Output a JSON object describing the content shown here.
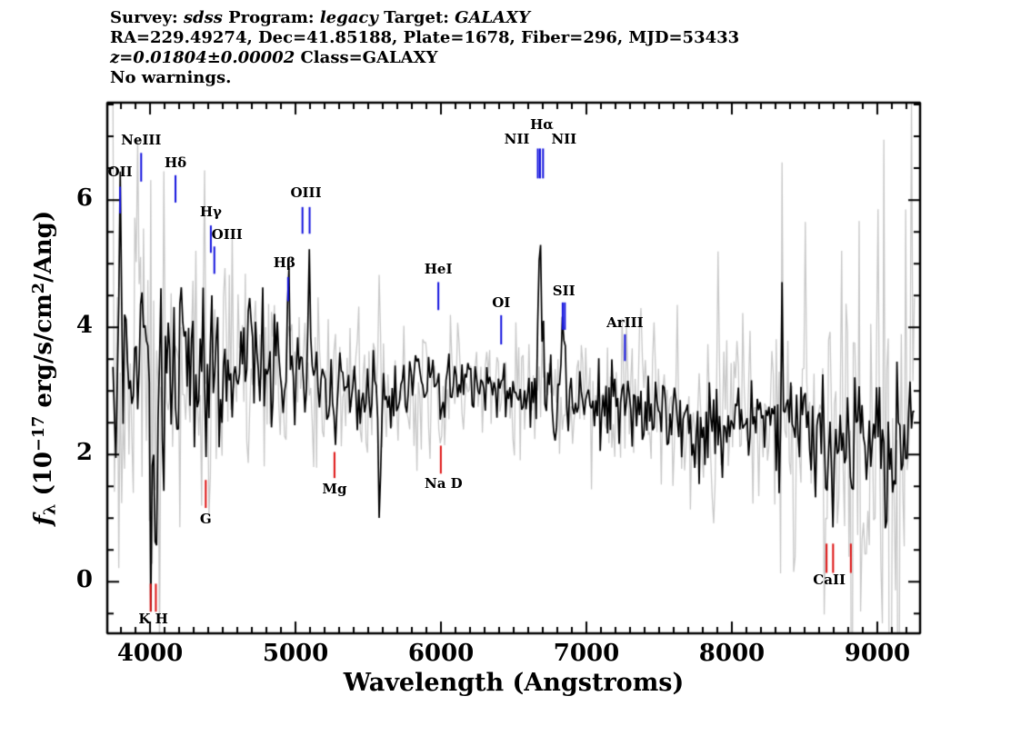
{
  "header": {
    "line1": {
      "survey_key": "Survey: ",
      "survey_val": "sdss",
      "program_key": " Program: ",
      "program_val": "legacy",
      "target_key": " Target: ",
      "target_val": "GALAXY"
    },
    "line2": "RA=229.49274, Dec=41.85188, Plate=1678, Fiber=296, MJD=53433",
    "line3": {
      "z_val": "z=0.01804±0.00002",
      "class_val": " Class=GALAXY"
    },
    "line4": "No warnings."
  },
  "chart_data": {
    "type": "line",
    "title": "",
    "xlabel": "Wavelength (Angstroms)",
    "ylabel_text": "fλ (10^-17 erg/s/cm^2/Ang)",
    "ylabel_parts": [
      "f",
      "λ",
      " (10",
      "−17",
      " erg/s/cm",
      "2",
      "/Ang)"
    ],
    "xlim": [
      3706,
      9294
    ],
    "ylim": [
      -0.81,
      7.53
    ],
    "xticks": [
      4000,
      5000,
      6000,
      7000,
      8000,
      9000
    ],
    "yticks": [
      0,
      2,
      4,
      6
    ],
    "x_minor_step": 100,
    "y_minor_step": 0.5,
    "grid": false,
    "legend": "none",
    "colors": {
      "flux": "#000000",
      "error": "#c8c8c8",
      "emission_tick": "#1010dd",
      "absorption_tick": "#dd1010",
      "frame": "#000000"
    },
    "series": [
      {
        "name": "flux",
        "style": "noisy-line",
        "color": "#000000"
      },
      {
        "name": "error",
        "style": "noisy-line",
        "color": "#c8c8c8"
      }
    ],
    "continuum_points": [
      [
        3745,
        3.2
      ],
      [
        3950,
        3.45
      ],
      [
        4150,
        3.3
      ],
      [
        4400,
        3.35
      ],
      [
        4700,
        3.35
      ],
      [
        5000,
        3.2
      ],
      [
        5400,
        3.05
      ],
      [
        5800,
        3.0
      ],
      [
        6200,
        3.05
      ],
      [
        6700,
        3.0
      ],
      [
        7000,
        2.85
      ],
      [
        7400,
        2.7
      ],
      [
        7800,
        2.6
      ],
      [
        8200,
        2.55
      ],
      [
        8600,
        2.4
      ],
      [
        9000,
        2.25
      ],
      [
        9255,
        2.35
      ]
    ],
    "flux_noise_sigma": [
      [
        3745,
        0.85
      ],
      [
        4100,
        0.8
      ],
      [
        4400,
        0.6
      ],
      [
        4700,
        0.45
      ],
      [
        5000,
        0.35
      ],
      [
        5500,
        0.3
      ],
      [
        6000,
        0.28
      ],
      [
        6500,
        0.28
      ],
      [
        7000,
        0.3
      ],
      [
        7500,
        0.35
      ],
      [
        8000,
        0.4
      ],
      [
        8500,
        0.45
      ],
      [
        9000,
        0.52
      ],
      [
        9255,
        0.55
      ]
    ],
    "error_sigma": [
      [
        3745,
        1.75
      ],
      [
        4100,
        1.6
      ],
      [
        4400,
        1.15
      ],
      [
        4700,
        0.9
      ],
      [
        5000,
        0.7
      ],
      [
        5500,
        0.6
      ],
      [
        6000,
        0.55
      ],
      [
        6500,
        0.55
      ],
      [
        7000,
        0.6
      ],
      [
        7500,
        0.68
      ],
      [
        8000,
        0.8
      ],
      [
        8500,
        0.95
      ],
      [
        9000,
        1.3
      ],
      [
        9255,
        1.5
      ]
    ],
    "sky_residuals": [
      [
        5577,
        6.0,
        4
      ],
      [
        6300,
        1.2,
        4
      ],
      [
        7245,
        1.0,
        4
      ],
      [
        7620,
        1.3,
        18
      ],
      [
        7900,
        0.8,
        30
      ],
      [
        8344,
        1.5,
        5
      ],
      [
        8430,
        1.2,
        5
      ],
      [
        8505,
        1.0,
        4
      ],
      [
        8630,
        1.2,
        5
      ],
      [
        8670,
        1.3,
        5
      ],
      [
        8767,
        1.8,
        5
      ],
      [
        8827,
        2.2,
        5
      ],
      [
        8885,
        2.2,
        5
      ],
      [
        8920,
        2.0,
        5
      ],
      [
        8960,
        2.5,
        5
      ],
      [
        9000,
        2.2,
        5
      ],
      [
        9040,
        2.8,
        6
      ],
      [
        9090,
        2.5,
        6
      ],
      [
        9140,
        2.5,
        6
      ],
      [
        9190,
        2.2,
        6
      ],
      [
        9230,
        2.0,
        6
      ]
    ],
    "features": {
      "emission": [
        [
          3794,
          2.0,
          6
        ],
        [
          3939,
          2.3,
          6
        ],
        [
          4175,
          0.9,
          6
        ],
        [
          4418,
          1.0,
          6
        ],
        [
          4442,
          0.5,
          6
        ],
        [
          4949,
          1.25,
          6
        ],
        [
          5048,
          0.7,
          6
        ],
        [
          5097,
          2.1,
          6
        ],
        [
          5982,
          0.85,
          6
        ],
        [
          6414,
          0.5,
          6
        ],
        [
          6666,
          0.7,
          6
        ],
        [
          6681,
          3.45,
          6
        ],
        [
          6702,
          1.0,
          6
        ],
        [
          6837,
          0.8,
          6
        ],
        [
          6852,
          0.65,
          6
        ],
        [
          7265,
          0.55,
          6
        ],
        [
          8344,
          1.2,
          5
        ]
      ],
      "absorption": [
        [
          4004,
          -2.0,
          6
        ],
        [
          4040,
          -3.2,
          6
        ],
        [
          4383,
          -1.5,
          6
        ],
        [
          5268,
          -0.8,
          9
        ],
        [
          5577,
          -2.6,
          5
        ],
        [
          5999,
          -0.7,
          7
        ],
        [
          8651,
          -1.3,
          6
        ],
        [
          8696,
          -1.2,
          6
        ],
        [
          8818,
          -1.2,
          6
        ],
        [
          8930,
          -1.4,
          6
        ],
        [
          9060,
          -1.7,
          7
        ],
        [
          8770,
          -1.0,
          5
        ]
      ]
    },
    "lines": [
      {
        "label": "OII",
        "kind": "emission",
        "waves": [
          3794
        ],
        "anchor": 3794,
        "dx": 0,
        "tick": [
          6.21,
          5.79
        ],
        "label_y": 6.43
      },
      {
        "label": "NeIII",
        "kind": "emission",
        "waves": [
          3939
        ],
        "anchor": 3939,
        "dx": 0,
        "tick": [
          6.74,
          6.29
        ],
        "label_y": 6.93
      },
      {
        "label": "Hδ",
        "kind": "emission",
        "waves": [
          4175
        ],
        "anchor": 4175,
        "dx": 0,
        "tick": [
          6.39,
          5.96
        ],
        "label_y": 6.57
      },
      {
        "label": "Hγ",
        "kind": "emission",
        "waves": [
          4418
        ],
        "anchor": 4418,
        "dx": 0,
        "tick": [
          5.6,
          5.17
        ],
        "label_y": 5.8
      },
      {
        "label": "OIII",
        "kind": "emission",
        "waves": [
          4442
        ],
        "anchor": 4442,
        "dx": 14,
        "tick": [
          5.27,
          4.84
        ],
        "label_y": 5.44
      },
      {
        "label": "Hβ",
        "kind": "emission",
        "waves": [
          4949
        ],
        "anchor": 4949,
        "dx": -4,
        "tick": [
          4.79,
          4.41
        ],
        "label_y": 5.0
      },
      {
        "label": "OIII",
        "kind": "emission",
        "waves": [
          5048,
          5097
        ],
        "anchor": 5072,
        "dx": 0,
        "tick": [
          5.89,
          5.47
        ],
        "label_y": 6.1
      },
      {
        "label": "HeI",
        "kind": "emission",
        "waves": [
          5982
        ],
        "anchor": 5982,
        "dx": 0,
        "tick": [
          4.71,
          4.27
        ],
        "label_y": 4.9
      },
      {
        "label": "OI",
        "kind": "emission",
        "waves": [
          6414
        ],
        "anchor": 6414,
        "dx": 0,
        "tick": [
          4.19,
          3.73
        ],
        "label_y": 4.38
      },
      {
        "label": "NII",
        "kind": "emission",
        "waves": [
          6666
        ],
        "anchor": 6666,
        "dx": -23,
        "tick": [
          6.81,
          6.34
        ],
        "label_y": 6.95
      },
      {
        "label": "Hα",
        "kind": "emission",
        "waves": [
          6681
        ],
        "anchor": 6681,
        "dx": 2,
        "tick": [
          6.81,
          6.34
        ],
        "label_y": 7.17
      },
      {
        "label": "NII",
        "kind": "emission",
        "waves": [
          6702
        ],
        "anchor": 6702,
        "dx": 23,
        "tick": [
          6.81,
          6.34
        ],
        "label_y": 6.95
      },
      {
        "label": "SII",
        "kind": "emission",
        "waves": [
          6837,
          6852
        ],
        "anchor": 6845,
        "dx": 0,
        "tick": [
          4.39,
          3.96
        ],
        "label_y": 4.56
      },
      {
        "label": "ArIII",
        "kind": "emission",
        "waves": [
          7265
        ],
        "anchor": 7265,
        "dx": 0,
        "tick": [
          3.89,
          3.47
        ],
        "label_y": 4.06
      },
      {
        "label": "K H",
        "kind": "absorption",
        "waves": [
          4004,
          4040
        ],
        "anchor": 4022,
        "dx": 0,
        "tick": [
          -0.03,
          -0.47
        ],
        "label_y": -0.6
      },
      {
        "label": "G",
        "kind": "absorption",
        "waves": [
          4383
        ],
        "anchor": 4383,
        "dx": 0,
        "tick": [
          1.6,
          1.16
        ],
        "label_y": 0.97
      },
      {
        "label": "Mg",
        "kind": "absorption",
        "waves": [
          5268
        ],
        "anchor": 5268,
        "dx": 0,
        "tick": [
          2.04,
          1.63
        ],
        "label_y": 1.44
      },
      {
        "label": "Na D",
        "kind": "absorption",
        "waves": [
          5999
        ],
        "anchor": 5999,
        "dx": 3,
        "tick": [
          2.14,
          1.7
        ],
        "label_y": 1.53
      },
      {
        "label": "CaII",
        "kind": "absorption",
        "waves": [
          8651,
          8696,
          8818
        ],
        "anchor": 8670,
        "dx": 0,
        "tick": [
          0.6,
          0.14
        ],
        "label_y": 0.02
      }
    ]
  }
}
